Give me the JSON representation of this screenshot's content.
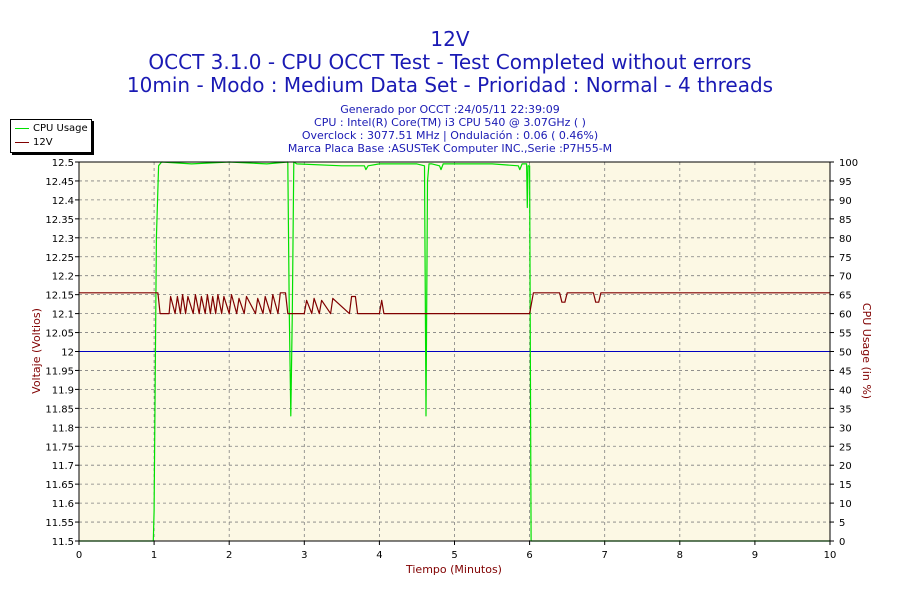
{
  "header": {
    "title": "12V",
    "subtitle1": "OCCT 3.1.0 - CPU OCCT Test - Test Completed without errors",
    "subtitle2": "10min - Modo : Medium Data Set - Prioridad : Normal - 4 threads"
  },
  "info": {
    "line1": "Generado por OCCT :24/05/11 22:39:09",
    "line2": "CPU : Intel(R) Core(TM) i3 CPU 540 @ 3.07GHz ( )",
    "line3": "Overclock : 3077.51 MHz | Ondulación : 0.06 ( 0.46%)",
    "line4": "Marca Placa Base :ASUSTeK Computer INC.,Serie :P7H55-M"
  },
  "colors": {
    "plot_bg": "#fcf8e4",
    "voltage": "#800000",
    "cpu": "#00e000",
    "reference": "#0000c0",
    "text_blue": "#1a1ab4",
    "axis_label": "#800000"
  },
  "chart_data": {
    "type": "line",
    "xlabel": "Tiempo (Minutos)",
    "ylabel_left": "Voltaje (Voltios)",
    "ylabel_right": "CPU Usage (in %)",
    "xlim": [
      0,
      10
    ],
    "ylim_left": [
      11.5,
      12.5
    ],
    "ylim_right": [
      0,
      100
    ],
    "x_ticks": [
      0,
      1,
      2,
      3,
      4,
      5,
      6,
      7,
      8,
      9,
      10
    ],
    "y_left_ticks": [
      "11.5",
      "11.55",
      "11.6",
      "11.65",
      "11.7",
      "11.75",
      "11.8",
      "11.85",
      "11.9",
      "11.95",
      "12",
      "12.05",
      "12.1",
      "12.15",
      "12.2",
      "12.25",
      "12.3",
      "12.35",
      "12.4",
      "12.45",
      "12.5"
    ],
    "y_right_ticks": [
      "0",
      "5",
      "10",
      "15",
      "20",
      "25",
      "30",
      "35",
      "40",
      "45",
      "50",
      "55",
      "60",
      "65",
      "70",
      "75",
      "80",
      "85",
      "90",
      "95",
      "100"
    ],
    "grid": true,
    "legend": "top-left",
    "reference_line": 12.0,
    "series": [
      {
        "name": "CPU Usage",
        "axis": "right",
        "x": [
          0,
          0.99,
          1.0,
          1.03,
          1.06,
          1.1,
          1.5,
          2.0,
          2.5,
          2.78,
          2.8,
          2.82,
          2.84,
          2.86,
          2.9,
          3.5,
          3.8,
          3.82,
          3.85,
          4.0,
          4.5,
          4.6,
          4.62,
          4.64,
          4.66,
          4.7,
          4.8,
          4.82,
          4.85,
          5.5,
          5.85,
          5.87,
          5.9,
          5.96,
          5.97,
          5.98,
          6.0,
          6.02,
          10
        ],
        "y": [
          0,
          0,
          8,
          80,
          99,
          100,
          99.5,
          100,
          99.5,
          100,
          60,
          33,
          60,
          100,
          99.5,
          99,
          99,
          98,
          99,
          99.5,
          99.5,
          99,
          33,
          95,
          99.5,
          99.5,
          99,
          98,
          99.5,
          99.5,
          99,
          98,
          99.5,
          99.5,
          88,
          99,
          99,
          0,
          0
        ]
      },
      {
        "name": "12V",
        "axis": "left",
        "x": [
          0,
          1.0,
          1.05,
          1.08,
          1.2,
          1.22,
          1.28,
          1.31,
          1.35,
          1.38,
          1.42,
          1.45,
          1.52,
          1.55,
          1.6,
          1.63,
          1.68,
          1.71,
          1.75,
          1.78,
          1.82,
          1.85,
          1.9,
          1.93,
          2.0,
          2.03,
          2.1,
          2.13,
          2.2,
          2.23,
          2.35,
          2.38,
          2.45,
          2.48,
          2.55,
          2.58,
          2.65,
          2.68,
          2.75,
          2.78,
          3.0,
          3.03,
          3.1,
          3.13,
          3.2,
          3.23,
          3.35,
          3.38,
          3.6,
          3.63,
          3.68,
          3.71,
          4.0,
          4.03,
          4.06,
          6.0,
          6.05,
          6.08,
          6.4,
          6.43,
          6.47,
          6.5,
          6.85,
          6.88,
          6.92,
          6.95,
          10
        ],
        "y": [
          12.155,
          12.155,
          12.155,
          12.1,
          12.1,
          12.145,
          12.1,
          12.145,
          12.1,
          12.15,
          12.1,
          12.145,
          12.1,
          12.15,
          12.1,
          12.145,
          12.1,
          12.15,
          12.1,
          12.145,
          12.1,
          12.15,
          12.1,
          12.145,
          12.1,
          12.15,
          12.1,
          12.14,
          12.1,
          12.145,
          12.1,
          12.14,
          12.1,
          12.145,
          12.1,
          12.15,
          12.1,
          12.155,
          12.155,
          12.1,
          12.1,
          12.135,
          12.1,
          12.14,
          12.1,
          12.135,
          12.1,
          12.14,
          12.1,
          12.145,
          12.145,
          12.1,
          12.1,
          12.135,
          12.1,
          12.1,
          12.155,
          12.155,
          12.155,
          12.13,
          12.13,
          12.155,
          12.155,
          12.13,
          12.13,
          12.155,
          12.155
        ]
      }
    ]
  }
}
